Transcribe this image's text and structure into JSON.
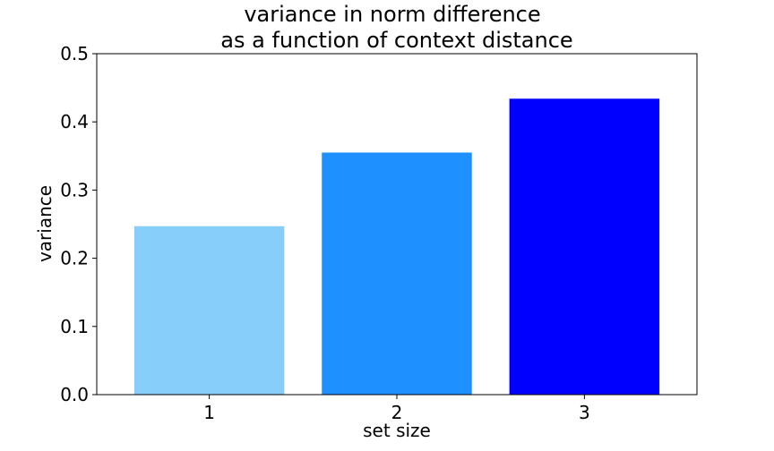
{
  "chart_data": {
    "type": "bar",
    "title_lines": [
      "variance in norm difference",
      "as a function of context distance"
    ],
    "xlabel": "set size",
    "ylabel": "variance",
    "categories": [
      "1",
      "2",
      "3"
    ],
    "values": [
      0.247,
      0.355,
      0.434
    ],
    "colors": [
      "#87CEFA",
      "#1E90FF",
      "#0000FF"
    ],
    "ylim": [
      0,
      0.5
    ],
    "yticks": [
      0.0,
      0.1,
      0.2,
      0.3,
      0.4,
      0.5
    ],
    "ytick_labels": [
      "0.0",
      "0.1",
      "0.2",
      "0.3",
      "0.4",
      "0.5"
    ],
    "grid": false,
    "legend": "none"
  }
}
